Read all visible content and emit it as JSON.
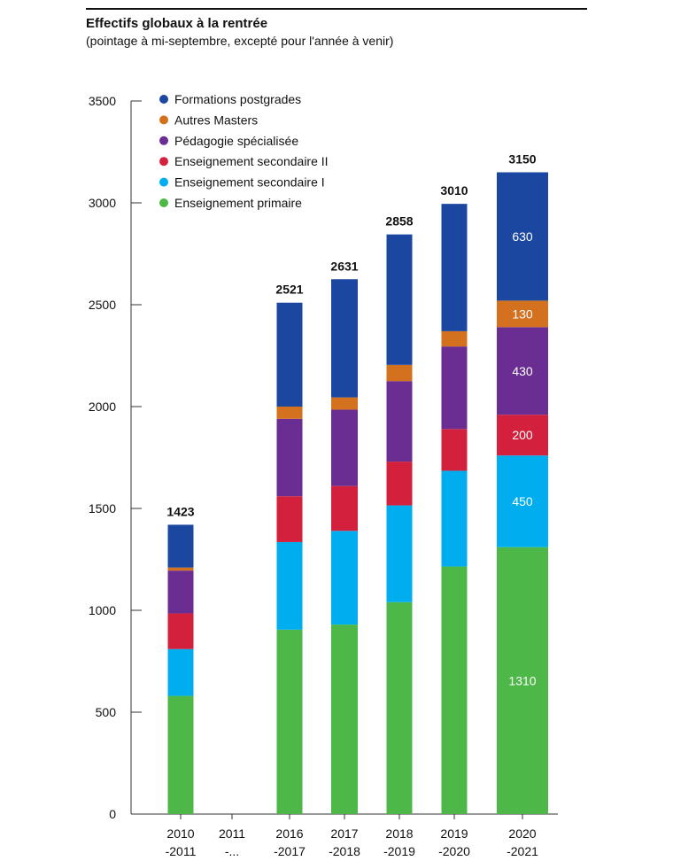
{
  "chart_data": {
    "type": "bar",
    "stacked": true,
    "title": "Effectifs globaux à la rentrée",
    "subtitle": "(pointage à mi-septembre, excepté pour l'année à venir)",
    "xlabel": "",
    "ylabel": "",
    "ylim": [
      0,
      3500
    ],
    "yticks": [
      0,
      500,
      1000,
      1500,
      2000,
      2500,
      3000,
      3500
    ],
    "grid": false,
    "legend_position": "top-left",
    "categories": [
      [
        "2010",
        "-2011"
      ],
      [
        "2011",
        "-..."
      ],
      [
        "2016",
        "-2017"
      ],
      [
        "2017",
        "-2018"
      ],
      [
        "2018",
        "-2019"
      ],
      [
        "2019",
        "-2020"
      ],
      [
        "2020",
        "-2021"
      ]
    ],
    "totals": [
      1423,
      null,
      2521,
      2631,
      2858,
      3010,
      3150
    ],
    "series": [
      {
        "name": "Enseignement primaire",
        "color": "#4db848",
        "values": [
          580,
          null,
          905,
          930,
          1040,
          1215,
          1310
        ],
        "labels": [
          null,
          null,
          null,
          null,
          null,
          null,
          "1310"
        ]
      },
      {
        "name": "Enseignement secondaire I",
        "color": "#00aeef",
        "values": [
          230,
          null,
          430,
          460,
          475,
          470,
          450
        ],
        "labels": [
          null,
          null,
          null,
          null,
          null,
          null,
          "450"
        ]
      },
      {
        "name": "Enseignement secondaire II",
        "color": "#d2203d",
        "values": [
          175,
          null,
          225,
          220,
          215,
          205,
          200
        ],
        "labels": [
          null,
          null,
          null,
          null,
          null,
          null,
          "200"
        ]
      },
      {
        "name": "Pédagogie spécialisée",
        "color": "#6a2d91",
        "values": [
          210,
          null,
          380,
          375,
          395,
          405,
          430
        ],
        "labels": [
          null,
          null,
          null,
          null,
          null,
          null,
          "430"
        ]
      },
      {
        "name": "Autres Masters",
        "color": "#d4711f",
        "values": [
          15,
          null,
          60,
          60,
          80,
          75,
          130
        ],
        "labels": [
          null,
          null,
          null,
          null,
          null,
          null,
          "130"
        ]
      },
      {
        "name": "Formations postgrades",
        "color": "#1b47a0",
        "values": [
          210,
          null,
          510,
          580,
          640,
          625,
          630
        ],
        "labels": [
          null,
          null,
          null,
          null,
          null,
          null,
          "630"
        ]
      }
    ],
    "legend_order": [
      "Formations postgrades",
      "Autres Masters",
      "Pédagogie spécialisée",
      "Enseignement secondaire II",
      "Enseignement secondaire I",
      "Enseignement primaire"
    ]
  }
}
